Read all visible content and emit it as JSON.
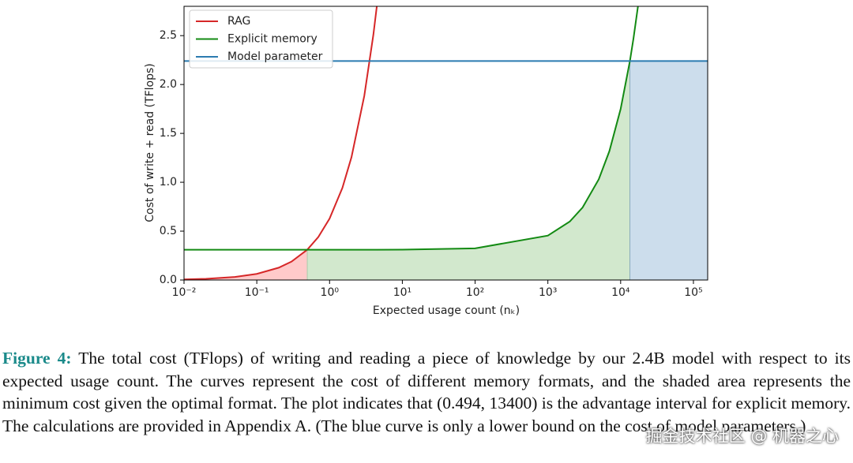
{
  "chart_data": {
    "type": "line",
    "ylabel": "Cost of write + read (TFlops)",
    "xlabel": "Expected usage count (nₖ)",
    "log_x": true,
    "legend": "upper left",
    "xlim": [
      0.01,
      157000
    ],
    "ylim": [
      0,
      2.8
    ],
    "xticks": [
      {
        "value": 0.01,
        "label": "10⁻²"
      },
      {
        "value": 0.1,
        "label": "10⁻¹"
      },
      {
        "value": 1,
        "label": "10⁰"
      },
      {
        "value": 10,
        "label": "10¹"
      },
      {
        "value": 100,
        "label": "10²"
      },
      {
        "value": 1000,
        "label": "10³"
      },
      {
        "value": 10000,
        "label": "10⁴"
      },
      {
        "value": 100000,
        "label": "10⁵"
      }
    ],
    "yticks": [
      {
        "value": 0,
        "label": "0.0"
      },
      {
        "value": 0.5,
        "label": "0.5"
      },
      {
        "value": 1,
        "label": "1.0"
      },
      {
        "value": 1.5,
        "label": "1.5"
      },
      {
        "value": 2,
        "label": "2.0"
      },
      {
        "value": 2.5,
        "label": "2.5"
      }
    ],
    "advantage_interval": [
      0.494,
      13400
    ],
    "x": [
      0.01,
      0.02,
      0.05,
      0.1,
      0.2,
      0.3,
      0.494,
      0.7,
      1,
      1.5,
      2,
      3,
      4,
      4.46,
      10,
      100,
      1000,
      2000,
      3000,
      5000,
      7000,
      10000,
      13400,
      15000,
      17300,
      157000
    ],
    "series": [
      {
        "name": "RAG",
        "color": "#d62728",
        "fill": "#ffc4c4",
        "values": [
          0.00628,
          0.0126,
          0.0314,
          0.0628,
          0.126,
          0.188,
          0.31,
          0.44,
          0.628,
          0.942,
          1.256,
          1.884,
          2.51,
          2.8,
          null,
          null,
          null,
          null,
          null,
          null,
          null,
          null,
          null,
          null,
          null,
          null
        ]
      },
      {
        "name": "Explicit memory",
        "color": "#138a13",
        "fill": "#cde6c8",
        "values": [
          0.31,
          0.31,
          0.31,
          0.31,
          0.31,
          0.31,
          0.31,
          0.31,
          0.31,
          0.31,
          0.31,
          0.31,
          0.31,
          0.31,
          0.311,
          0.324,
          0.454,
          0.598,
          0.742,
          1.03,
          1.318,
          1.75,
          2.24,
          2.47,
          2.8,
          null
        ]
      },
      {
        "name": "Model parameter",
        "color": "#2b7bb0",
        "fill": "#c6d9ea",
        "values": [
          2.24,
          2.24,
          2.24,
          2.24,
          2.24,
          2.24,
          2.24,
          2.24,
          2.24,
          2.24,
          2.24,
          2.24,
          2.24,
          2.24,
          2.24,
          2.24,
          2.24,
          2.24,
          2.24,
          2.24,
          2.24,
          2.24,
          2.24,
          2.24,
          2.24,
          2.24
        ]
      }
    ]
  },
  "caption": {
    "label": "Figure 4:",
    "text": "The total cost (TFlops) of writing and reading a piece of knowledge by our 2.4B model with respect to its expected usage count. The curves represent the cost of different memory formats, and the shaded area represents the minimum cost given the optimal format. The plot indicates that (0.494, 13400) is the advantage interval for explicit memory. The calculations are provided in Appendix A. (The blue curve is only a lower bound on the cost of model parameters.)"
  },
  "watermark": "掘金技术社区 @ 机器之心"
}
